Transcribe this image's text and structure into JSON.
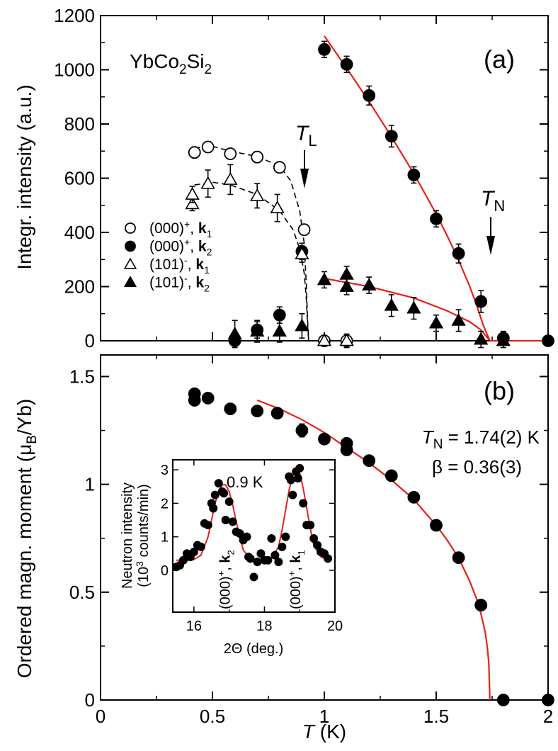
{
  "chart_data": [
    {
      "panel": "(a)",
      "type": "scatter",
      "compound": {
        "base": "YbCo",
        "sub1": "2",
        "mid": "Si",
        "sub2": "2"
      },
      "panel_label": "(a)",
      "ylabel": "Integr. intensity (a.u.)",
      "xlabel": "",
      "xlim": [
        0,
        2
      ],
      "ylim": [
        0,
        1200
      ],
      "yticks": [
        0,
        200,
        400,
        600,
        800,
        1000,
        1200
      ],
      "annotations": {
        "TL": {
          "main": "T",
          "sub": "L",
          "x": 0.91
        },
        "TN": {
          "main": "T",
          "sub": "N",
          "x": 1.74
        }
      },
      "legend_entries": [
        {
          "pre": "(000)",
          "sup": "+",
          "mid": ", ",
          "k": "k",
          "sub": "1"
        },
        {
          "pre": "(000)",
          "sup": "+",
          "mid": ", ",
          "k": "k",
          "sub": "2"
        },
        {
          "pre": "(101)",
          "sup": "-",
          "mid": ", ",
          "k": "k",
          "sub": "1"
        },
        {
          "pre": "(101)",
          "sup": "-",
          "mid": ", ",
          "k": "k",
          "sub": "2"
        }
      ],
      "series": [
        {
          "name": "(000)+, k1",
          "marker": "open-circle",
          "x": [
            0.42,
            0.48,
            0.58,
            0.7,
            0.8,
            0.91,
            1.0,
            1.1
          ],
          "y": [
            695,
            715,
            690,
            678,
            640,
            410,
            0,
            0
          ],
          "err": [
            20,
            20,
            15,
            20,
            18,
            18,
            20,
            25
          ]
        },
        {
          "name": "(000)+, k2",
          "marker": "filled-circle",
          "x": [
            0.6,
            0.7,
            0.8,
            0.9,
            1.0,
            1.1,
            1.2,
            1.3,
            1.4,
            1.5,
            1.6,
            1.7,
            1.8,
            2.0
          ],
          "y": [
            0,
            40,
            95,
            330,
            1075,
            1020,
            905,
            755,
            612,
            450,
            322,
            145,
            10,
            0
          ],
          "err": [
            15,
            30,
            30,
            30,
            30,
            30,
            35,
            40,
            30,
            30,
            35,
            40,
            25,
            10
          ]
        },
        {
          "name": "(101)-, k1",
          "marker": "open-triangle",
          "x": [
            0.41,
            0.41,
            0.48,
            0.58,
            0.7,
            0.79,
            0.9,
            1.0,
            1.1
          ],
          "y": [
            505,
            540,
            580,
            595,
            535,
            490,
            320,
            0,
            0
          ],
          "err": [
            25,
            30,
            50,
            55,
            45,
            50,
            30,
            20,
            20
          ]
        },
        {
          "name": "(101)-, k2",
          "marker": "filled-triangle",
          "x": [
            0.6,
            0.7,
            0.8,
            0.9,
            1.0,
            1.1,
            1.1,
            1.2,
            1.3,
            1.4,
            1.5,
            1.6,
            1.7,
            1.8
          ],
          "y": [
            25,
            35,
            35,
            55,
            225,
            245,
            200,
            205,
            130,
            120,
            65,
            75,
            5,
            0
          ],
          "err": [
            50,
            40,
            40,
            45,
            30,
            30,
            30,
            30,
            40,
            40,
            30,
            40,
            30,
            25
          ]
        }
      ],
      "fit_lines": [
        {
          "name": "k2 (000)+ fit",
          "style": "solid-red",
          "x": [
            1.0,
            1.1,
            1.2,
            1.3,
            1.4,
            1.5,
            1.55,
            1.6,
            1.65,
            1.68,
            1.71,
            1.74,
            1.75,
            2.0
          ],
          "y": [
            1125,
            1006,
            883,
            753,
            617,
            468,
            386,
            298,
            200,
            133,
            58,
            0,
            0,
            0
          ]
        },
        {
          "name": "k2 (101)- fit",
          "style": "solid-red",
          "x": [
            1.0,
            1.2,
            1.4,
            1.55,
            1.65,
            1.7,
            1.74
          ],
          "y": [
            230,
            200,
            158,
            110,
            70,
            40,
            0
          ]
        },
        {
          "name": "(000)+ k1 guide",
          "style": "dashed-black",
          "x": [
            0.42,
            0.48,
            0.58,
            0.7,
            0.8,
            0.85,
            0.89,
            0.91,
            0.92,
            0.925,
            0.93
          ],
          "y": [
            708,
            722,
            700,
            680,
            645,
            590,
            480,
            360,
            200,
            80,
            0
          ]
        },
        {
          "name": "(101)- k1 guide",
          "style": "dashed-black",
          "x": [
            0.42,
            0.5,
            0.58,
            0.7,
            0.8,
            0.86,
            0.89,
            0.91,
            0.92,
            0.925,
            0.93
          ],
          "y": [
            575,
            585,
            575,
            540,
            480,
            410,
            340,
            250,
            150,
            60,
            0
          ]
        }
      ]
    },
    {
      "panel": "(b)",
      "type": "scatter",
      "panel_label": "(b)",
      "ylabel": {
        "main": "Ordered magn. moment (",
        "mu": "μ",
        "sub": "B",
        "end": "/Yb)"
      },
      "xlabel": {
        "main": "T",
        "unit": " (K)"
      },
      "xlim": [
        0,
        2
      ],
      "ylim": [
        0,
        1.6
      ],
      "xticks": [
        0,
        0.5,
        1,
        1.5,
        2
      ],
      "xticklabels": [
        "0",
        "0.5",
        "1",
        "1.5",
        "2"
      ],
      "yticks": [
        0,
        0.5,
        1,
        1.5
      ],
      "yticklabels": [
        "0",
        "0.5",
        "1",
        "1.5"
      ],
      "fit_text": {
        "tn_main": "T",
        "tn_sub": "N",
        "tn_rest": " = 1.74(2) K",
        "beta": "β = 0.36(3)"
      },
      "series": [
        {
          "name": "moment",
          "marker": "filled-circle",
          "x": [
            0.42,
            0.42,
            0.48,
            0.58,
            0.7,
            0.79,
            0.9,
            1.0,
            1.1,
            1.1,
            1.2,
            1.3,
            1.4,
            1.5,
            1.6,
            1.7,
            1.8,
            2.0
          ],
          "y": [
            1.39,
            1.42,
            1.4,
            1.35,
            1.34,
            1.33,
            1.25,
            1.21,
            1.19,
            1.16,
            1.11,
            1.04,
            0.94,
            0.81,
            0.66,
            0.44,
            0.0,
            0.0
          ],
          "err": [
            0,
            0,
            0,
            0.02,
            0.02,
            0.02,
            0.03,
            0.02,
            0.02,
            0.02,
            0.02,
            0.02,
            0.02,
            0.02,
            0.02,
            0.02,
            0,
            0
          ]
        }
      ],
      "fit_line": {
        "style": "solid-red",
        "x": [
          0.7,
          0.8,
          0.9,
          1.0,
          1.1,
          1.2,
          1.3,
          1.4,
          1.5,
          1.55,
          1.6,
          1.65,
          1.68,
          1.7,
          1.72,
          1.73,
          1.735,
          1.74
        ],
        "y": [
          1.39,
          1.35,
          1.3,
          1.24,
          1.17,
          1.1,
          1.02,
          0.93,
          0.81,
          0.74,
          0.66,
          0.55,
          0.47,
          0.4,
          0.31,
          0.23,
          0.17,
          0.0
        ]
      },
      "inset": {
        "type": "scatter",
        "temperature_label": "0.9 K",
        "xlabel": {
          "main": "2",
          "theta": "Θ",
          "rest": " (deg.)"
        },
        "ylabel": {
          "line1": "Neutron intensity",
          "pre": "(10",
          "sup": "3",
          "rest": " counts/min)"
        },
        "xlim": [
          15.4,
          20.0
        ],
        "ylim": [
          -1.25,
          3.3
        ],
        "xticks": [
          16,
          18,
          20
        ],
        "xticklabels": [
          "16",
          "18",
          "20"
        ],
        "yticks": [
          0,
          1,
          2,
          3
        ],
        "yticklabels": [
          "0",
          "1",
          "2",
          "3"
        ],
        "peak_labels": [
          {
            "pre": "(000)",
            "sup": "+",
            "mid": ", ",
            "k": "k",
            "sub": "2",
            "x": 16.9
          },
          {
            "pre": "(000)",
            "sup": "+",
            "mid": ", ",
            "k": "k",
            "sub": "1",
            "x": 18.9
          }
        ],
        "points": {
          "x": [
            15.5,
            15.6,
            15.7,
            15.8,
            15.9,
            16.0,
            16.1,
            16.2,
            16.3,
            16.4,
            16.5,
            16.55,
            16.6,
            16.7,
            16.8,
            16.85,
            16.9,
            17.0,
            17.1,
            17.2,
            17.3,
            17.4,
            17.5,
            17.55,
            17.6,
            17.7,
            17.8,
            17.9,
            18.0,
            18.1,
            18.2,
            18.3,
            18.4,
            18.5,
            18.6,
            18.7,
            18.75,
            18.8,
            18.9,
            18.95,
            19.0,
            19.1,
            19.2,
            19.3,
            19.4,
            19.5,
            19.6,
            19.7,
            19.8
          ],
          "y": [
            0.1,
            0.15,
            0.3,
            0.5,
            0.4,
            0.55,
            0.75,
            0.7,
            1.4,
            1.35,
            2.0,
            1.85,
            2.25,
            2.6,
            2.35,
            2.3,
            1.5,
            2.05,
            1.45,
            1.15,
            1.1,
            0.9,
            1.0,
            0.4,
            0.35,
            -0.2,
            0.25,
            0.5,
            0.3,
            0.3,
            0.95,
            0.45,
            0.25,
            0.7,
            1.0,
            2.8,
            2.7,
            2.25,
            2.95,
            2.75,
            3.05,
            2.0,
            1.35,
            1.35,
            0.95,
            0.75,
            0.55,
            0.5,
            0.35
          ]
        },
        "fit": {
          "x": [
            15.5,
            15.8,
            16.0,
            16.2,
            16.4,
            16.5,
            16.6,
            16.7,
            16.8,
            16.9,
            17.0,
            17.1,
            17.2,
            17.3,
            17.4,
            17.6,
            17.8,
            18.0,
            18.2,
            18.4,
            18.5,
            18.6,
            18.7,
            18.8,
            18.9,
            19.0,
            19.1,
            19.2,
            19.3,
            19.4,
            19.6,
            19.8
          ],
          "y": [
            0.3,
            0.3,
            0.32,
            0.45,
            1.0,
            1.5,
            2.0,
            2.35,
            2.55,
            2.55,
            2.35,
            1.95,
            1.45,
            1.0,
            0.6,
            0.35,
            0.3,
            0.3,
            0.35,
            0.7,
            1.2,
            1.8,
            2.4,
            2.8,
            3.0,
            2.9,
            2.45,
            1.85,
            1.25,
            0.75,
            0.4,
            0.32
          ]
        }
      }
    }
  ]
}
